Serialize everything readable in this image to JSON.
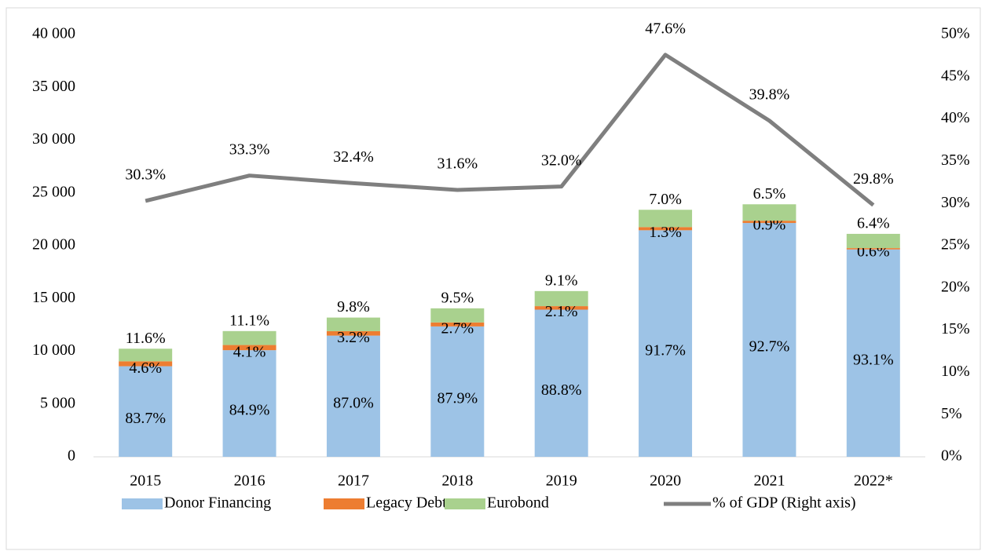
{
  "chart_data": {
    "type": "bar",
    "categories": [
      "2015",
      "2016",
      "2017",
      "2018",
      "2019",
      "2020",
      "2021",
      "2022*"
    ],
    "series": [
      {
        "name": "Donor Financing",
        "color": "#9dc3e6",
        "values": [
          8580,
          10100,
          11480,
          12350,
          13940,
          21460,
          22150,
          19645
        ],
        "share_labels": [
          "83.7%",
          "84.9%",
          "87.0%",
          "87.9%",
          "88.8%",
          "91.7%",
          "92.7%",
          "93.1%"
        ]
      },
      {
        "name": "Legacy Debt",
        "color": "#ed7d31",
        "values": [
          470,
          490,
          420,
          380,
          330,
          300,
          215,
          125
        ],
        "share_labels": [
          "4.6%",
          "4.1%",
          "3.2%",
          "2.7%",
          "2.1%",
          "1.3%",
          "0.9%",
          "0.6%"
        ]
      },
      {
        "name": "Eurobond",
        "color": "#a9d18e",
        "values": [
          1190,
          1320,
          1290,
          1335,
          1430,
          1640,
          1555,
          1350
        ],
        "share_labels": [
          "11.6%",
          "11.1%",
          "9.8%",
          "9.5%",
          "9.1%",
          "7.0%",
          "6.5%",
          "6.4%"
        ]
      },
      {
        "name": "% of GDP (Right axis)",
        "color": "#7f7f7f",
        "type": "line",
        "axis": "y2",
        "values": [
          30.3,
          33.3,
          32.4,
          31.6,
          32.0,
          47.6,
          39.8,
          29.8
        ],
        "value_labels": [
          "30.3%",
          "33.3%",
          "32.4%",
          "31.6%",
          "32.0%",
          "47.6%",
          "39.8%",
          "29.8%"
        ]
      }
    ],
    "ylim": [
      0,
      40000
    ],
    "yticks": [
      {
        "value": 0,
        "label": "0"
      },
      {
        "value": 5000,
        "label": "5 000"
      },
      {
        "value": 10000,
        "label": "10 000"
      },
      {
        "value": 15000,
        "label": "15 000"
      },
      {
        "value": 20000,
        "label": "20 000"
      },
      {
        "value": 25000,
        "label": "25 000"
      },
      {
        "value": 30000,
        "label": "30 000"
      },
      {
        "value": 35000,
        "label": "35 000"
      },
      {
        "value": 40000,
        "label": "40 000"
      }
    ],
    "y2lim": [
      0,
      50
    ],
    "y2ticks": [
      {
        "value": 0,
        "label": "0%"
      },
      {
        "value": 5,
        "label": "5%"
      },
      {
        "value": 10,
        "label": "10%"
      },
      {
        "value": 15,
        "label": "15%"
      },
      {
        "value": 20,
        "label": "20%"
      },
      {
        "value": 25,
        "label": "25%"
      },
      {
        "value": 30,
        "label": "30%"
      },
      {
        "value": 35,
        "label": "35%"
      },
      {
        "value": 40,
        "label": "40%"
      },
      {
        "value": 45,
        "label": "45%"
      },
      {
        "value": 50,
        "label": "50%"
      }
    ],
    "legend": "bottom"
  }
}
